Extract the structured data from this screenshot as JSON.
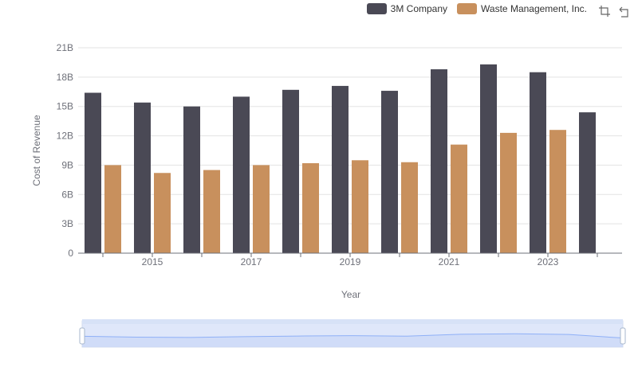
{
  "legend": {
    "series_a": "3M Company",
    "series_b": "Waste Management, Inc."
  },
  "toolbar": {
    "zoom_icon": "zoom-select-icon",
    "restore_icon": "restore-icon"
  },
  "colors": {
    "series_a": "#4a4955",
    "series_b": "#c8905d",
    "grid": "#e3e3e3",
    "axis": "#6e7079",
    "zoom_fill": "#dfe7fa",
    "zoom_line": "#8fb0f7"
  },
  "chart_data": {
    "type": "bar",
    "xlabel": "Year",
    "ylabel": "Cost of Revenue",
    "categories": [
      "2014",
      "2015",
      "2016",
      "2017",
      "2018",
      "2019",
      "2020",
      "2021",
      "2022",
      "2023",
      "2024"
    ],
    "x_tick_labels": [
      "2015",
      "2017",
      "2019",
      "2021",
      "2023"
    ],
    "y_tick_labels": [
      "0",
      "3B",
      "6B",
      "9B",
      "12B",
      "15B",
      "18B",
      "21B"
    ],
    "ylim": [
      0,
      21
    ],
    "y_unit": "B",
    "grid": true,
    "legend_position": "top-right",
    "series": [
      {
        "name": "3M Company",
        "values": [
          16.4,
          15.4,
          15.0,
          16.0,
          16.7,
          17.1,
          16.6,
          18.8,
          19.3,
          18.5,
          14.4
        ]
      },
      {
        "name": "Waste Management, Inc.",
        "values": [
          9.0,
          8.2,
          8.5,
          9.0,
          9.2,
          9.5,
          9.3,
          11.1,
          12.3,
          12.6,
          null
        ]
      }
    ]
  }
}
